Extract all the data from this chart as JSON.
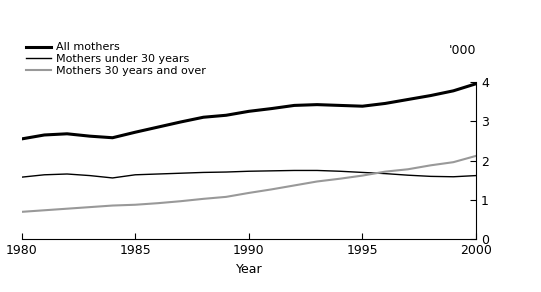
{
  "years": [
    1980,
    1981,
    1982,
    1983,
    1984,
    1985,
    1986,
    1987,
    1988,
    1989,
    1990,
    1991,
    1992,
    1993,
    1994,
    1995,
    1996,
    1997,
    1998,
    1999,
    2000
  ],
  "all_mothers": [
    2.55,
    2.65,
    2.68,
    2.62,
    2.58,
    2.72,
    2.85,
    2.98,
    3.1,
    3.15,
    3.25,
    3.32,
    3.4,
    3.42,
    3.4,
    3.38,
    3.45,
    3.55,
    3.65,
    3.77,
    3.95
  ],
  "under_30": [
    1.58,
    1.64,
    1.66,
    1.62,
    1.56,
    1.64,
    1.66,
    1.68,
    1.7,
    1.71,
    1.73,
    1.74,
    1.75,
    1.75,
    1.73,
    1.7,
    1.67,
    1.63,
    1.6,
    1.59,
    1.62
  ],
  "over_30": [
    0.7,
    0.74,
    0.78,
    0.82,
    0.86,
    0.88,
    0.92,
    0.97,
    1.03,
    1.08,
    1.18,
    1.27,
    1.37,
    1.47,
    1.54,
    1.62,
    1.72,
    1.78,
    1.88,
    1.96,
    2.12
  ],
  "all_mothers_color": "#000000",
  "under_30_color": "#000000",
  "over_30_color": "#999999",
  "all_mothers_lw": 2.2,
  "under_30_lw": 1.0,
  "over_30_lw": 1.5,
  "legend_labels": [
    "All mothers",
    "Mothers under 30 years",
    "Mothers 30 years and over"
  ],
  "xlabel": "Year",
  "ylabel_right": "'000",
  "ylim": [
    0,
    4
  ],
  "yticks": [
    0,
    1,
    2,
    3,
    4
  ],
  "xlim": [
    1980,
    2000
  ],
  "xticks": [
    1980,
    1985,
    1990,
    1995,
    2000
  ],
  "bg_color": "#ffffff"
}
